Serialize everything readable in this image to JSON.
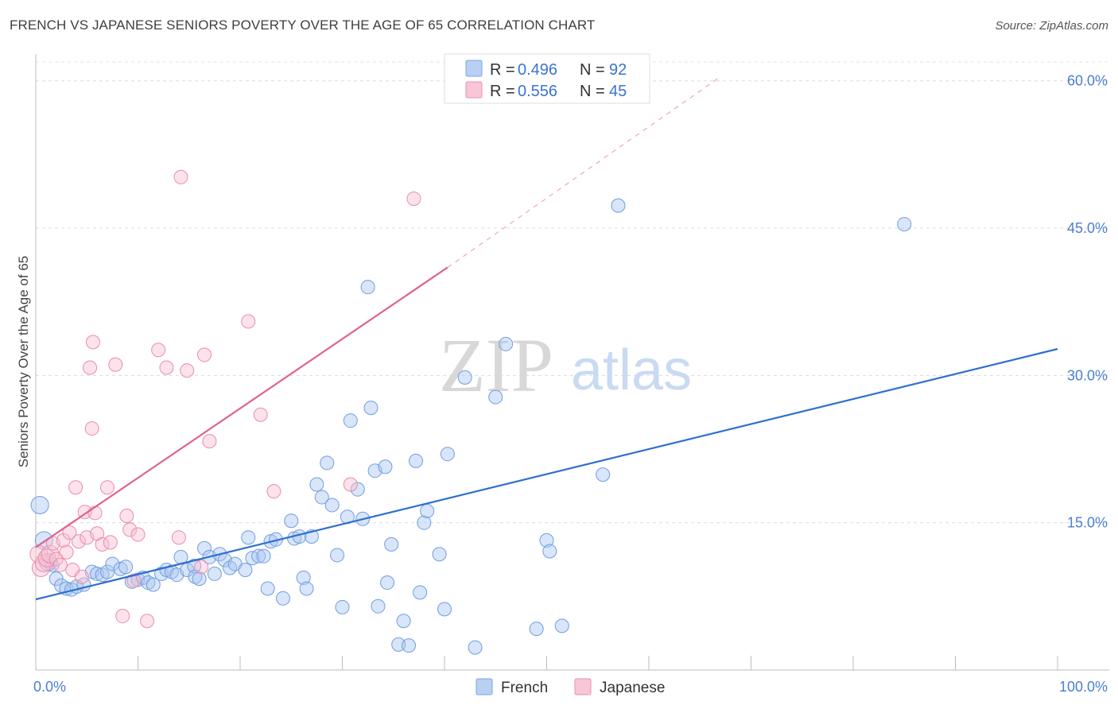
{
  "header": {
    "title": "FRENCH VS JAPANESE SENIORS POVERTY OVER THE AGE OF 65 CORRELATION CHART",
    "source": "Source: ZipAtlas.com"
  },
  "watermark": {
    "zip": "ZIP",
    "atlas": "atlas"
  },
  "chart_data": {
    "type": "scatter",
    "title": "FRENCH VS JAPANESE SENIORS POVERTY OVER THE AGE OF 65 CORRELATION CHART",
    "xlabel": "",
    "ylabel": "Seniors Poverty Over the Age of 65",
    "xlim": [
      0,
      100
    ],
    "ylim": [
      0,
      62
    ],
    "x_tick_labels": [
      "0.0%",
      "100.0%"
    ],
    "y_ticks": [
      15,
      30,
      45,
      60
    ],
    "y_tick_labels": [
      "15.0%",
      "30.0%",
      "45.0%",
      "60.0%"
    ],
    "grid": true,
    "legend_position": "top-center",
    "colors": {
      "French": "#4f86d8",
      "Japanese": "#e8799c"
    },
    "legend": [
      {
        "name": "French",
        "r_label": "R = ",
        "r": "0.496",
        "n_label": "N = ",
        "n": "92"
      },
      {
        "name": "Japanese",
        "r_label": "R = ",
        "r": "0.556",
        "n_label": "N = ",
        "n": "45"
      }
    ],
    "series": [
      {
        "name": "French",
        "trend": {
          "x0": 0,
          "y0": 7.2,
          "x1": 100,
          "y1": 32.7
        },
        "points": [
          [
            0.4,
            16.8
          ],
          [
            0.8,
            13.2
          ],
          [
            1.2,
            11.0
          ],
          [
            1.6,
            10.7
          ],
          [
            2.0,
            9.3
          ],
          [
            2.5,
            8.6
          ],
          [
            3.0,
            8.3
          ],
          [
            3.5,
            8.2
          ],
          [
            4.0,
            8.5
          ],
          [
            4.7,
            8.7
          ],
          [
            5.5,
            10.0
          ],
          [
            6.0,
            9.8
          ],
          [
            6.5,
            9.7
          ],
          [
            7.0,
            10.0
          ],
          [
            7.5,
            10.8
          ],
          [
            8.3,
            10.3
          ],
          [
            8.8,
            10.5
          ],
          [
            9.4,
            9.0
          ],
          [
            10.0,
            9.2
          ],
          [
            10.5,
            9.4
          ],
          [
            11.0,
            8.9
          ],
          [
            11.5,
            8.7
          ],
          [
            12.3,
            9.8
          ],
          [
            12.8,
            10.2
          ],
          [
            13.3,
            10.0
          ],
          [
            13.8,
            9.7
          ],
          [
            14.2,
            11.5
          ],
          [
            14.8,
            10.2
          ],
          [
            15.5,
            10.6
          ],
          [
            15.6,
            9.5
          ],
          [
            16.0,
            9.3
          ],
          [
            16.5,
            12.4
          ],
          [
            17.0,
            11.5
          ],
          [
            17.5,
            9.8
          ],
          [
            18.0,
            11.8
          ],
          [
            18.5,
            11.2
          ],
          [
            19.0,
            10.4
          ],
          [
            19.5,
            10.8
          ],
          [
            20.5,
            10.2
          ],
          [
            20.8,
            13.5
          ],
          [
            21.2,
            11.4
          ],
          [
            21.8,
            11.6
          ],
          [
            22.3,
            11.6
          ],
          [
            22.7,
            8.3
          ],
          [
            23.0,
            13.1
          ],
          [
            23.5,
            13.3
          ],
          [
            24.2,
            7.3
          ],
          [
            25.0,
            15.2
          ],
          [
            25.3,
            13.4
          ],
          [
            25.8,
            13.6
          ],
          [
            26.2,
            9.4
          ],
          [
            26.5,
            8.3
          ],
          [
            27.0,
            13.6
          ],
          [
            27.5,
            18.9
          ],
          [
            28.0,
            17.6
          ],
          [
            28.5,
            21.1
          ],
          [
            29.0,
            16.8
          ],
          [
            29.5,
            11.7
          ],
          [
            30.0,
            6.4
          ],
          [
            30.5,
            15.6
          ],
          [
            30.8,
            25.4
          ],
          [
            31.5,
            18.4
          ],
          [
            32.0,
            15.4
          ],
          [
            32.5,
            39.0
          ],
          [
            32.8,
            26.7
          ],
          [
            33.2,
            20.3
          ],
          [
            33.5,
            6.5
          ],
          [
            34.2,
            20.7
          ],
          [
            34.4,
            8.9
          ],
          [
            34.8,
            12.8
          ],
          [
            35.5,
            2.6
          ],
          [
            36.0,
            5.0
          ],
          [
            36.5,
            2.5
          ],
          [
            37.2,
            21.3
          ],
          [
            37.6,
            7.9
          ],
          [
            38.0,
            15.0
          ],
          [
            38.3,
            16.2
          ],
          [
            39.5,
            11.8
          ],
          [
            40.0,
            6.2
          ],
          [
            40.3,
            22.0
          ],
          [
            42.0,
            29.8
          ],
          [
            43.0,
            2.3
          ],
          [
            45.0,
            27.8
          ],
          [
            46.0,
            33.2
          ],
          [
            49.0,
            4.2
          ],
          [
            50.0,
            13.2
          ],
          [
            50.3,
            12.1
          ],
          [
            51.5,
            4.5
          ],
          [
            55.5,
            19.9
          ],
          [
            57.0,
            47.3
          ],
          [
            85.0,
            45.4
          ]
        ]
      },
      {
        "name": "Japanese",
        "trend": {
          "x0": 0,
          "y0": 12.5,
          "x1": 40.3,
          "y1": 41.0,
          "dash_x1": 66.7,
          "dash_y1": 60.2
        },
        "points": [
          [
            0.3,
            11.8
          ],
          [
            0.5,
            10.4
          ],
          [
            0.8,
            10.9
          ],
          [
            1.1,
            11.4
          ],
          [
            1.4,
            11.8
          ],
          [
            1.7,
            12.9
          ],
          [
            2.0,
            11.3
          ],
          [
            2.4,
            10.7
          ],
          [
            2.7,
            13.2
          ],
          [
            3.0,
            12.0
          ],
          [
            3.3,
            14.0
          ],
          [
            3.6,
            10.2
          ],
          [
            3.9,
            18.6
          ],
          [
            4.2,
            13.1
          ],
          [
            4.5,
            9.5
          ],
          [
            4.8,
            16.1
          ],
          [
            5.0,
            13.5
          ],
          [
            5.3,
            30.8
          ],
          [
            5.5,
            24.6
          ],
          [
            5.6,
            33.4
          ],
          [
            5.8,
            16.0
          ],
          [
            6.0,
            13.9
          ],
          [
            6.5,
            12.8
          ],
          [
            7.0,
            18.6
          ],
          [
            7.3,
            13.0
          ],
          [
            7.8,
            31.1
          ],
          [
            8.5,
            5.5
          ],
          [
            8.9,
            15.7
          ],
          [
            9.2,
            14.3
          ],
          [
            9.6,
            9.1
          ],
          [
            10.0,
            13.8
          ],
          [
            10.9,
            5.0
          ],
          [
            12.0,
            32.6
          ],
          [
            12.8,
            30.8
          ],
          [
            14.0,
            13.5
          ],
          [
            14.2,
            50.2
          ],
          [
            14.8,
            30.5
          ],
          [
            16.2,
            10.5
          ],
          [
            16.5,
            32.1
          ],
          [
            17.0,
            23.3
          ],
          [
            20.8,
            35.5
          ],
          [
            22.0,
            26.0
          ],
          [
            23.3,
            18.2
          ],
          [
            30.8,
            18.9
          ],
          [
            37.0,
            48.0
          ]
        ]
      }
    ]
  },
  "bottom_legend": [
    {
      "name": "French"
    },
    {
      "name": "Japanese"
    }
  ]
}
